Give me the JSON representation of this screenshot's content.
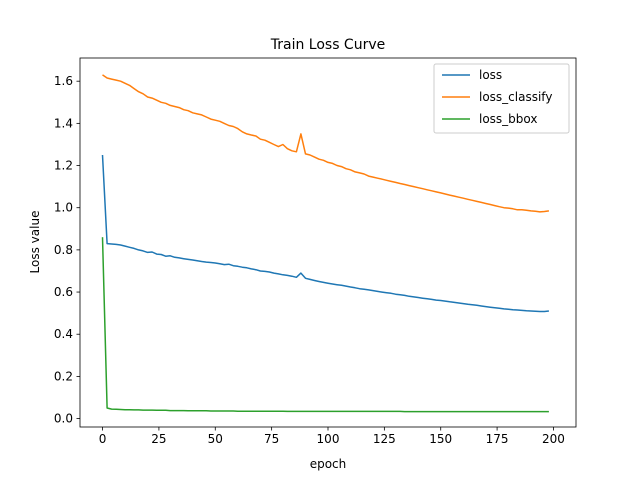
{
  "chart_data": {
    "type": "line",
    "title": "Train Loss Curve",
    "xlabel": "epoch",
    "ylabel": "Loss value",
    "xlim": [
      -10,
      210
    ],
    "ylim": [
      -0.04,
      1.71
    ],
    "xticks": [
      0,
      25,
      50,
      75,
      100,
      125,
      150,
      175,
      200
    ],
    "yticks": [
      0.0,
      0.2,
      0.4,
      0.6,
      0.8,
      1.0,
      1.2,
      1.4,
      1.6
    ],
    "grid": false,
    "legend": "top-right",
    "x": [
      0,
      2,
      4,
      6,
      8,
      10,
      12,
      14,
      16,
      18,
      20,
      22,
      24,
      26,
      28,
      30,
      32,
      34,
      36,
      38,
      40,
      42,
      44,
      46,
      48,
      50,
      52,
      54,
      56,
      58,
      60,
      62,
      64,
      66,
      68,
      70,
      72,
      74,
      76,
      78,
      80,
      82,
      84,
      86,
      88,
      90,
      92,
      94,
      96,
      98,
      100,
      102,
      104,
      106,
      108,
      110,
      112,
      114,
      116,
      118,
      120,
      122,
      124,
      126,
      128,
      130,
      132,
      134,
      136,
      138,
      140,
      142,
      144,
      146,
      148,
      150,
      152,
      154,
      156,
      158,
      160,
      162,
      164,
      166,
      168,
      170,
      172,
      174,
      176,
      178,
      180,
      182,
      184,
      186,
      188,
      190,
      192,
      194,
      196,
      198
    ],
    "series": [
      {
        "name": "loss",
        "color": "#1f77b4",
        "values": [
          1.25,
          0.83,
          0.828,
          0.826,
          0.823,
          0.818,
          0.812,
          0.807,
          0.8,
          0.795,
          0.788,
          0.79,
          0.78,
          0.778,
          0.77,
          0.772,
          0.765,
          0.762,
          0.758,
          0.755,
          0.752,
          0.748,
          0.745,
          0.742,
          0.74,
          0.738,
          0.734,
          0.73,
          0.732,
          0.725,
          0.722,
          0.718,
          0.715,
          0.71,
          0.706,
          0.7,
          0.698,
          0.695,
          0.69,
          0.686,
          0.682,
          0.679,
          0.675,
          0.67,
          0.69,
          0.665,
          0.66,
          0.655,
          0.65,
          0.646,
          0.642,
          0.638,
          0.635,
          0.632,
          0.628,
          0.624,
          0.62,
          0.616,
          0.613,
          0.61,
          0.607,
          0.603,
          0.6,
          0.597,
          0.594,
          0.59,
          0.587,
          0.584,
          0.58,
          0.577,
          0.574,
          0.571,
          0.568,
          0.565,
          0.562,
          0.56,
          0.557,
          0.554,
          0.551,
          0.548,
          0.545,
          0.542,
          0.54,
          0.537,
          0.534,
          0.531,
          0.528,
          0.526,
          0.523,
          0.52,
          0.518,
          0.516,
          0.515,
          0.513,
          0.511,
          0.51,
          0.509,
          0.508,
          0.508,
          0.51
        ]
      },
      {
        "name": "loss_classify",
        "color": "#ff7f0e",
        "values": [
          1.63,
          1.615,
          1.61,
          1.605,
          1.6,
          1.59,
          1.58,
          1.565,
          1.55,
          1.54,
          1.525,
          1.52,
          1.51,
          1.5,
          1.495,
          1.485,
          1.48,
          1.475,
          1.465,
          1.46,
          1.45,
          1.445,
          1.44,
          1.43,
          1.42,
          1.415,
          1.41,
          1.4,
          1.39,
          1.385,
          1.375,
          1.36,
          1.35,
          1.345,
          1.34,
          1.325,
          1.32,
          1.31,
          1.3,
          1.29,
          1.3,
          1.28,
          1.27,
          1.265,
          1.35,
          1.255,
          1.25,
          1.24,
          1.23,
          1.225,
          1.215,
          1.21,
          1.2,
          1.195,
          1.185,
          1.18,
          1.17,
          1.165,
          1.16,
          1.15,
          1.145,
          1.14,
          1.135,
          1.13,
          1.125,
          1.12,
          1.115,
          1.11,
          1.105,
          1.1,
          1.095,
          1.09,
          1.085,
          1.08,
          1.075,
          1.07,
          1.065,
          1.06,
          1.055,
          1.05,
          1.045,
          1.04,
          1.035,
          1.03,
          1.025,
          1.02,
          1.015,
          1.01,
          1.005,
          1.0,
          0.998,
          0.995,
          0.99,
          0.99,
          0.988,
          0.985,
          0.983,
          0.98,
          0.982,
          0.985
        ]
      },
      {
        "name": "loss_bbox",
        "color": "#2ca02c",
        "values": [
          0.86,
          0.05,
          0.045,
          0.044,
          0.043,
          0.042,
          0.042,
          0.041,
          0.041,
          0.04,
          0.04,
          0.04,
          0.039,
          0.039,
          0.039,
          0.038,
          0.038,
          0.038,
          0.038,
          0.037,
          0.037,
          0.037,
          0.037,
          0.037,
          0.036,
          0.036,
          0.036,
          0.036,
          0.036,
          0.036,
          0.035,
          0.035,
          0.035,
          0.035,
          0.035,
          0.035,
          0.035,
          0.035,
          0.035,
          0.035,
          0.035,
          0.034,
          0.034,
          0.034,
          0.034,
          0.034,
          0.034,
          0.034,
          0.034,
          0.034,
          0.034,
          0.034,
          0.034,
          0.034,
          0.034,
          0.034,
          0.034,
          0.034,
          0.034,
          0.034,
          0.034,
          0.034,
          0.034,
          0.034,
          0.034,
          0.034,
          0.034,
          0.033,
          0.033,
          0.033,
          0.033,
          0.033,
          0.033,
          0.033,
          0.033,
          0.033,
          0.033,
          0.033,
          0.033,
          0.033,
          0.033,
          0.033,
          0.033,
          0.033,
          0.033,
          0.033,
          0.033,
          0.033,
          0.033,
          0.033,
          0.033,
          0.033,
          0.033,
          0.033,
          0.033,
          0.033,
          0.033,
          0.033,
          0.033,
          0.033
        ]
      }
    ]
  }
}
